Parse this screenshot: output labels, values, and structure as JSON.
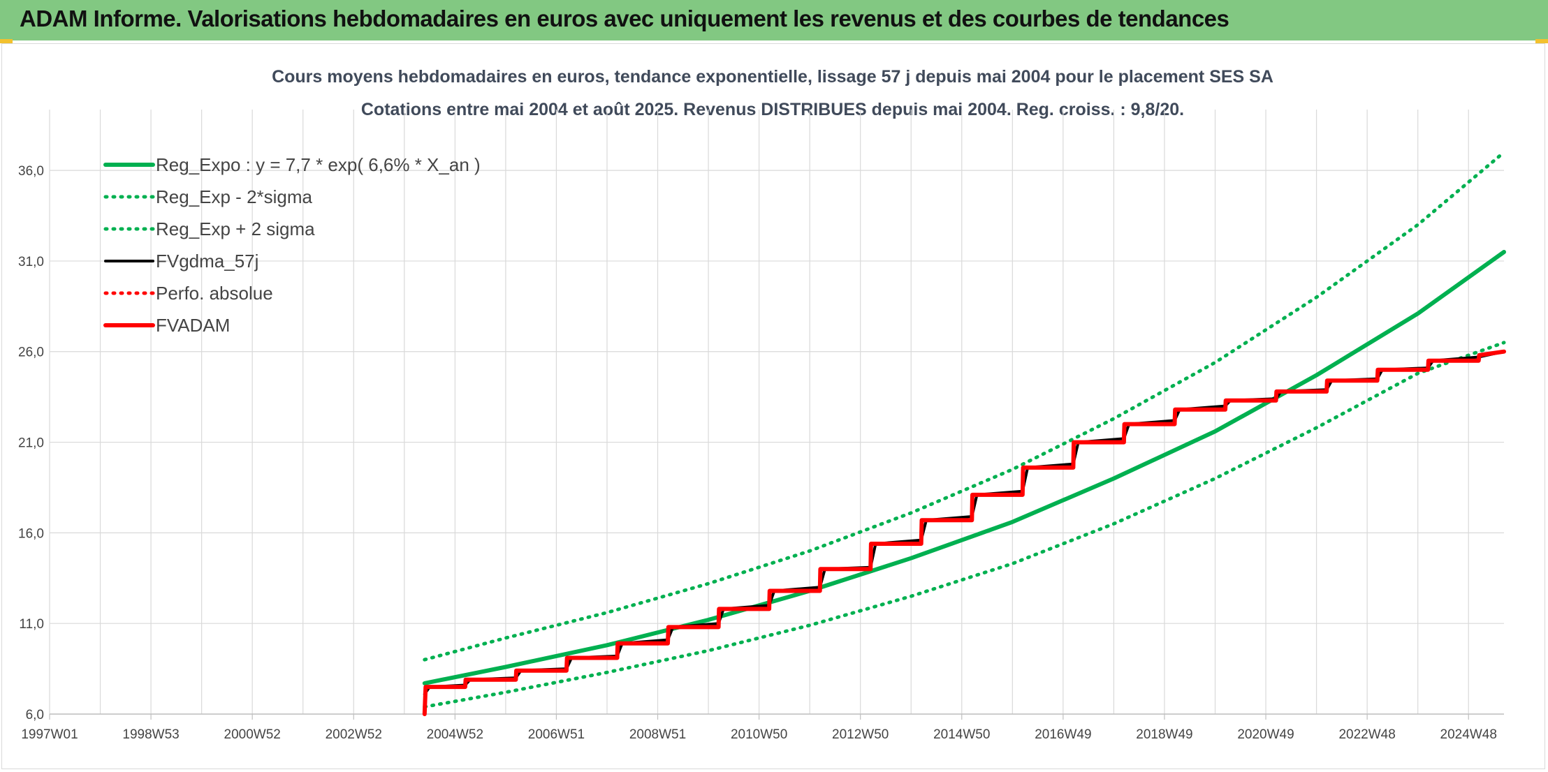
{
  "header": {
    "title": "ADAM Informe. Valorisations hebdomadaires en euros avec uniquement les revenus et des courbes de tendances"
  },
  "colors": {
    "header_bg": "#82c882",
    "trend_green": "#00b050",
    "fv_black": "#000000",
    "adam_red": "#ff0000",
    "grid": "#d9d9d9"
  },
  "chart_data": {
    "type": "line",
    "title": "Cours moyens hebdomadaires en euros, tendance exponentielle, lissage 57 j depuis mai 2004 pour le placement SES SA",
    "subtitle": "Cotations entre mai 2004 et août 2025. Revenus DISTRIBUES depuis mai 2004. Reg. croiss. : 9,8/20.",
    "xlabel": "",
    "ylabel": "",
    "x_tick_labels": [
      "1997W01",
      "1998W53",
      "2000W52",
      "2002W52",
      "2004W52",
      "2006W51",
      "2008W51",
      "2010W50",
      "2012W50",
      "2014W50",
      "2016W49",
      "2018W49",
      "2020W49",
      "2022W48",
      "2024W48"
    ],
    "x_range_years": [
      1997.0,
      2025.7
    ],
    "y_ticks": [
      6.0,
      11.0,
      16.0,
      21.0,
      26.0,
      31.0,
      36.0
    ],
    "y_tick_labels": [
      "6,0",
      "11,0",
      "16,0",
      "21,0",
      "26,0",
      "31,0",
      "36,0"
    ],
    "ylim": [
      6.0,
      38.2
    ],
    "grid": true,
    "legend_position": "top-left",
    "series": [
      {
        "name": "Reg_Expo : y = 7,7 * exp( 6,6% *  X_an )",
        "style": "solid-thick",
        "color": "#00b050",
        "x": [
          2004.4,
          2006,
          2008,
          2010,
          2012,
          2014,
          2016,
          2018,
          2020,
          2022,
          2024,
          2025.7
        ],
        "y": [
          7.7,
          8.6,
          9.8,
          11.2,
          12.8,
          14.6,
          16.6,
          19.0,
          21.6,
          24.7,
          28.1,
          31.5
        ]
      },
      {
        "name": "Reg_Exp - 2*sigma",
        "style": "dotted",
        "color": "#00b050",
        "x": [
          2004.4,
          2006,
          2008,
          2010,
          2012,
          2014,
          2016,
          2018,
          2020,
          2022,
          2024,
          2025.7
        ],
        "y": [
          6.4,
          7.2,
          8.3,
          9.5,
          10.9,
          12.5,
          14.3,
          16.5,
          19.0,
          21.8,
          24.8,
          26.5
        ]
      },
      {
        "name": "Reg_Exp + 2 sigma",
        "style": "dotted",
        "color": "#00b050",
        "x": [
          2004.4,
          2006,
          2008,
          2010,
          2012,
          2014,
          2016,
          2018,
          2020,
          2022,
          2024,
          2025.7
        ],
        "y": [
          9.0,
          10.2,
          11.6,
          13.2,
          15.0,
          17.1,
          19.5,
          22.3,
          25.4,
          29.0,
          33.0,
          37.0
        ]
      },
      {
        "name": "FVgdma_57j",
        "style": "solid",
        "color": "#000000",
        "x": [
          2004.4,
          2004.5,
          2005.2,
          2005.3,
          2006.2,
          2006.3,
          2007.2,
          2007.3,
          2008.2,
          2008.3,
          2009.2,
          2009.3,
          2010.2,
          2010.3,
          2011.2,
          2011.3,
          2012.2,
          2012.3,
          2013.2,
          2013.3,
          2014.2,
          2014.3,
          2015.2,
          2015.3,
          2016.2,
          2016.3,
          2017.2,
          2017.3,
          2018.2,
          2018.3,
          2019.2,
          2019.3,
          2020.2,
          2020.3,
          2021.2,
          2021.3,
          2022.2,
          2022.3,
          2023.2,
          2023.3,
          2024.2,
          2024.3,
          2025.2,
          2025.7
        ],
        "y": [
          7.1,
          7.5,
          7.6,
          7.9,
          8.0,
          8.4,
          8.5,
          9.1,
          9.2,
          9.9,
          10.1,
          10.8,
          11.0,
          11.8,
          12.0,
          12.8,
          13.0,
          14.0,
          14.1,
          15.4,
          15.6,
          16.7,
          16.9,
          18.1,
          18.3,
          19.6,
          19.8,
          21.0,
          21.2,
          22.0,
          22.2,
          22.8,
          23.0,
          23.3,
          23.4,
          23.8,
          23.9,
          24.4,
          24.5,
          25.0,
          25.1,
          25.5,
          25.7,
          26.0
        ]
      },
      {
        "name": "Perfo. absolue",
        "style": "dotted",
        "color": "#ff0000",
        "x": [],
        "y": []
      },
      {
        "name": "FVADAM",
        "style": "solid-thick",
        "color": "#ff0000",
        "x": [
          2004.4,
          2004.42,
          2005.2,
          2005.21,
          2006.2,
          2006.21,
          2007.2,
          2007.21,
          2008.2,
          2008.21,
          2009.2,
          2009.21,
          2010.2,
          2010.21,
          2011.2,
          2011.21,
          2012.2,
          2012.21,
          2013.2,
          2013.21,
          2014.2,
          2014.21,
          2015.2,
          2015.21,
          2016.2,
          2016.21,
          2017.2,
          2017.21,
          2018.2,
          2018.21,
          2019.2,
          2019.21,
          2020.2,
          2020.21,
          2021.2,
          2021.21,
          2022.2,
          2022.21,
          2023.2,
          2023.21,
          2024.2,
          2024.21,
          2025.2,
          2025.21,
          2025.7
        ],
        "y": [
          6.0,
          7.5,
          7.5,
          7.9,
          7.9,
          8.4,
          8.4,
          9.1,
          9.1,
          9.9,
          9.9,
          10.8,
          10.8,
          11.8,
          11.8,
          12.8,
          12.8,
          14.0,
          14.0,
          15.4,
          15.4,
          16.7,
          16.7,
          18.1,
          18.1,
          19.6,
          19.6,
          21.0,
          21.0,
          22.0,
          22.0,
          22.8,
          22.8,
          23.3,
          23.3,
          23.8,
          23.8,
          24.4,
          24.4,
          25.0,
          25.0,
          25.5,
          25.5,
          25.8,
          26.0
        ]
      }
    ]
  }
}
